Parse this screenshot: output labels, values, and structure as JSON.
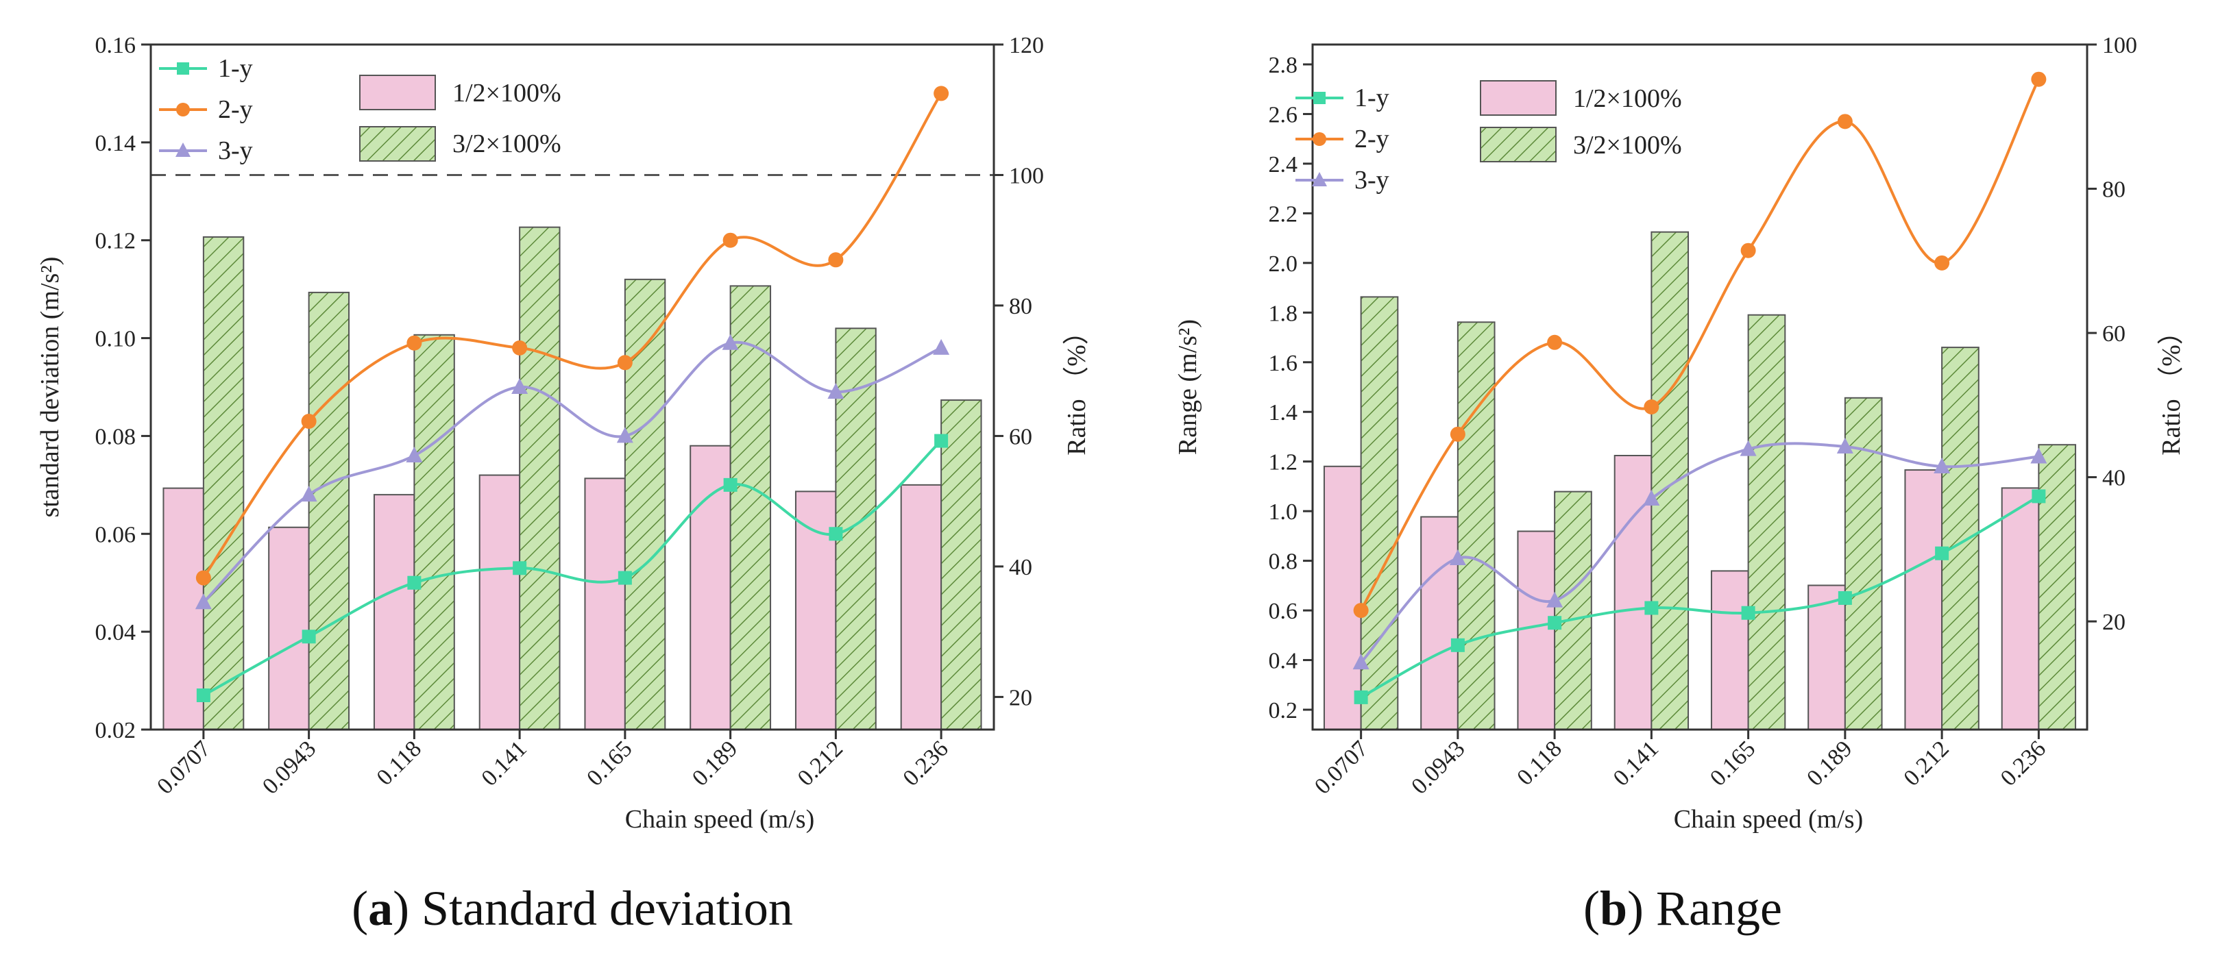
{
  "colors": {
    "bar1": "#f2c6dc",
    "bar2": "#c9e6b2",
    "hatch": "#5d8a3a",
    "series1": "#3fd9a5",
    "series2": "#f4862e",
    "series3": "#9f98d6"
  },
  "chart_data": [
    {
      "type": "bar+line",
      "title": "",
      "caption_letter": "a",
      "caption_text": " Standard deviation",
      "xlabel": "Chain speed (m/s)",
      "ylabel": "standard deviation (m/s²)",
      "y2label": "Ratio （%）",
      "categories": [
        "0.0707",
        "0.0943",
        "0.118",
        "0.141",
        "0.165",
        "0.189",
        "0.212",
        "0.236"
      ],
      "ylim": [
        0.02,
        0.16
      ],
      "yticks": [
        "0.02",
        "0.04",
        "0.06",
        "0.08",
        "0.10",
        "0.12",
        "0.14",
        "0.16"
      ],
      "y2lim": [
        15,
        120
      ],
      "y2ticks": [
        "20",
        "40",
        "60",
        "80",
        "100",
        "120"
      ],
      "reference_line_y2": 100,
      "line_series": [
        {
          "name": "1-y",
          "marker": "square",
          "values": [
            0.027,
            0.039,
            0.05,
            0.053,
            0.051,
            0.07,
            0.06,
            0.079
          ]
        },
        {
          "name": "2-y",
          "marker": "circle",
          "values": [
            0.051,
            0.083,
            0.099,
            0.098,
            0.095,
            0.12,
            0.116,
            0.15
          ]
        },
        {
          "name": "3-y",
          "marker": "triangle",
          "values": [
            0.046,
            0.068,
            0.076,
            0.09,
            0.08,
            0.099,
            0.089,
            0.098
          ]
        }
      ],
      "bar_series": [
        {
          "name": "1/2×100%",
          "values": [
            52,
            46,
            51,
            54,
            53.5,
            58.5,
            51.5,
            52.5
          ]
        },
        {
          "name": "3/2×100%",
          "values": [
            90.5,
            82,
            75.5,
            92,
            84,
            83,
            76.5,
            65.5
          ]
        }
      ]
    },
    {
      "type": "bar+line",
      "title": "",
      "caption_letter": "b",
      "caption_text": " Range",
      "xlabel": "Chain speed (m/s)",
      "ylabel": "Range (m/s²)",
      "y2label": "Ratio （%）",
      "categories": [
        "0.0707",
        "0.0943",
        "0.118",
        "0.141",
        "0.165",
        "0.189",
        "0.212",
        "0.236"
      ],
      "ylim": [
        0.12,
        2.88
      ],
      "yticks": [
        "0.2",
        "0.4",
        "0.6",
        "0.8",
        "1.0",
        "1.2",
        "1.4",
        "1.6",
        "1.8",
        "2.0",
        "2.2",
        "2.4",
        "2.6",
        "2.8"
      ],
      "y2lim": [
        5,
        100
      ],
      "y2ticks": [
        "20",
        "40",
        "60",
        "80",
        "100"
      ],
      "line_series": [
        {
          "name": "1-y",
          "marker": "square",
          "values": [
            0.25,
            0.46,
            0.55,
            0.61,
            0.59,
            0.65,
            0.83,
            1.06
          ]
        },
        {
          "name": "2-y",
          "marker": "circle",
          "values": [
            0.6,
            1.31,
            1.68,
            1.42,
            2.05,
            2.57,
            2.0,
            2.74
          ]
        },
        {
          "name": "3-y",
          "marker": "triangle",
          "values": [
            0.39,
            0.81,
            0.64,
            1.05,
            1.25,
            1.26,
            1.18,
            1.22
          ]
        }
      ],
      "bar_series": [
        {
          "name": "1/2×100%",
          "values": [
            41.5,
            34.5,
            32.5,
            43,
            27,
            25,
            41,
            38.5
          ]
        },
        {
          "name": "3/2×100%",
          "values": [
            65,
            61.5,
            38,
            74,
            62.5,
            51,
            58,
            44.5
          ]
        }
      ]
    }
  ]
}
